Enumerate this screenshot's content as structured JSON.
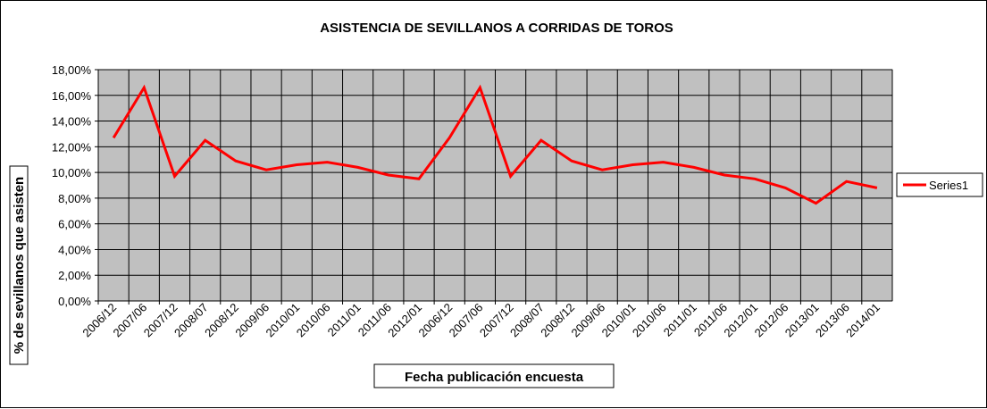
{
  "chart_data": {
    "type": "line",
    "title": "ASISTENCIA DE SEVILLANOS A CORRIDAS DE TOROS",
    "xlabel": "Fecha publicación encuesta",
    "ylabel": "% de sevillanos que asisten",
    "ylim": [
      0,
      18
    ],
    "y_ticks": [
      "0,00%",
      "2,00%",
      "4,00%",
      "6,00%",
      "8,00%",
      "10,00%",
      "12,00%",
      "14,00%",
      "16,00%",
      "18,00%"
    ],
    "categories": [
      "2006/12",
      "2007/06",
      "2007/12",
      "2008/07",
      "2008/12",
      "2009/06",
      "2010/01",
      "2010/06",
      "2011/01",
      "2011/06",
      "2012/01",
      "2006/12",
      "2007/06",
      "2007/12",
      "2008/07",
      "2008/12",
      "2009/06",
      "2010/01",
      "2010/06",
      "2011/01",
      "2011/06",
      "2012/01",
      "2012/06",
      "2013/01",
      "2013/06",
      "2014/01"
    ],
    "series": [
      {
        "name": "Series1",
        "color": "#ff0000",
        "values": [
          12.7,
          16.6,
          9.7,
          12.5,
          10.9,
          10.2,
          10.6,
          10.8,
          10.4,
          9.8,
          9.5,
          12.7,
          16.6,
          9.7,
          12.5,
          10.9,
          10.2,
          10.6,
          10.8,
          10.4,
          9.8,
          9.5,
          8.8,
          7.6,
          9.3,
          8.8
        ]
      }
    ],
    "grid": true,
    "plot_background": "#c0c0c0",
    "legend_position": "right"
  }
}
